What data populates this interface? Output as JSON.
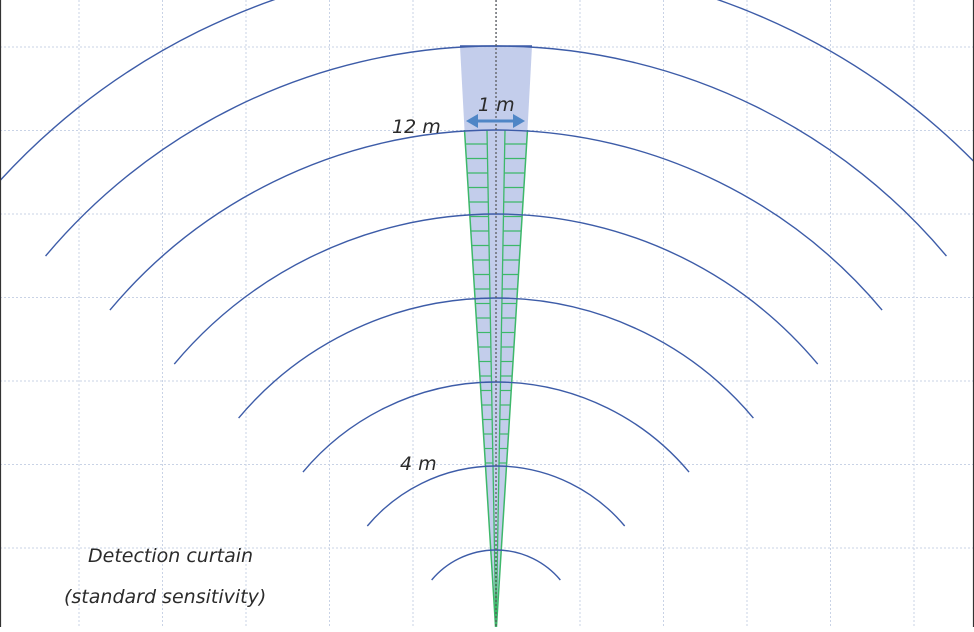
{
  "diagram": {
    "range_labels": {
      "near": "4 m",
      "far": "12 m"
    },
    "width_label": "1 m",
    "caption": [
      "Detection curtain",
      "(standard sensitivity)"
    ],
    "colors": {
      "background": "#ffffff",
      "grid": "#c9d3e6",
      "arc": "#3d5ca8",
      "beam_fill": "#b9c4e7",
      "curtain_line": "#3db86a",
      "arrow": "#4f86c6",
      "axis": "#555555",
      "frame": "#333333"
    }
  }
}
